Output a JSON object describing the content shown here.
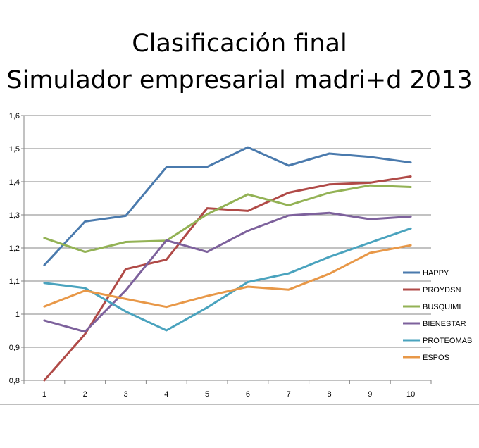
{
  "title_lines": [
    "Clasificación final",
    "Simulador empresarial madri+d 2013"
  ],
  "chart_data": {
    "type": "line",
    "title": "Clasificación final Simulador empresarial madri+d 2013",
    "xlabel": "",
    "ylabel": "",
    "categories": [
      "1",
      "2",
      "3",
      "4",
      "5",
      "6",
      "7",
      "8",
      "9",
      "10"
    ],
    "ylim": [
      0.8,
      1.6
    ],
    "yticks": [
      "0,8",
      "0,9",
      "1",
      "1,1",
      "1,2",
      "1,3",
      "1,4",
      "1,5",
      "1,6"
    ],
    "grid": "horizontal",
    "legend_position": "right",
    "series": [
      {
        "name": "HAPPY",
        "color": "#4a7aad",
        "values": [
          1.148,
          1.28,
          1.297,
          1.444,
          1.445,
          1.504,
          1.449,
          1.485,
          1.475,
          1.458
        ]
      },
      {
        "name": "PROYDSN",
        "color": "#b04a47",
        "values": [
          0.8,
          0.94,
          1.136,
          1.165,
          1.32,
          1.312,
          1.367,
          1.392,
          1.397,
          1.416
        ]
      },
      {
        "name": "BUSQUIMI",
        "color": "#93b255",
        "values": [
          1.23,
          1.188,
          1.218,
          1.222,
          1.302,
          1.362,
          1.329,
          1.367,
          1.389,
          1.384
        ]
      },
      {
        "name": "BIENESTAR",
        "color": "#7d619c",
        "values": [
          0.981,
          0.947,
          1.072,
          1.223,
          1.188,
          1.252,
          1.298,
          1.306,
          1.287,
          1.295
        ]
      },
      {
        "name": "PROTEOMAB",
        "color": "#4aa3be",
        "values": [
          1.094,
          1.079,
          1.008,
          0.951,
          1.02,
          1.097,
          1.123,
          1.173,
          1.216,
          1.259
        ]
      },
      {
        "name": "ESPOS",
        "color": "#e89848",
        "values": [
          1.023,
          1.071,
          1.046,
          1.022,
          1.055,
          1.083,
          1.074,
          1.122,
          1.185,
          1.208
        ]
      }
    ]
  }
}
